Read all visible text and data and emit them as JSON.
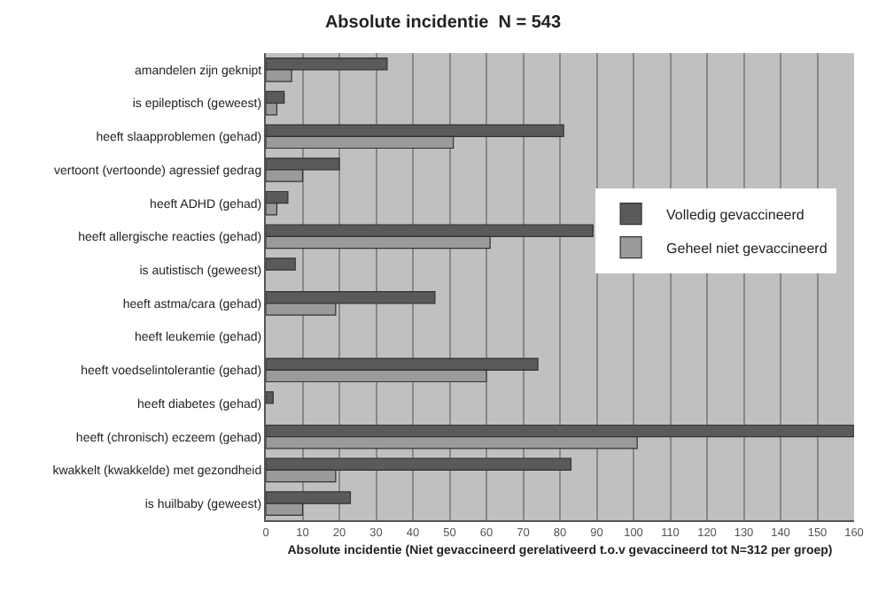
{
  "chart_data": {
    "type": "bar",
    "orientation": "horizontal",
    "title": "Absolute incidentie  N = 543",
    "xlabel": "Absolute incidentie (Niet gevaccineerd gerelativeerd t.o.v gevaccineerd tot N=312 per groep)",
    "categories": [
      "amandelen zijn geknipt",
      "is epileptisch (geweest)",
      "heeft slaapproblemen (gehad)",
      "vertoont (vertoonde) agressief gedrag",
      "heeft ADHD (gehad)",
      "heeft allergische reacties (gehad)",
      "is autistisch (geweest)",
      "heeft astma/cara (gehad)",
      "heeft leukemie (gehad)",
      "heeft voedselintolerantie (gehad)",
      "heeft diabetes (gehad)",
      "heeft (chronisch) eczeem (gehad)",
      "kwakkelt (kwakkelde) met gezondheid",
      "is huilbaby (geweest)"
    ],
    "series": [
      {
        "name": "Volledig gevaccineerd",
        "color": "#5a5a5a",
        "values": [
          33,
          5,
          81,
          20,
          6,
          89,
          8,
          46,
          0,
          74,
          2,
          160,
          83,
          23
        ]
      },
      {
        "name": "Geheel niet gevaccineerd",
        "color": "#9a9a9a",
        "values": [
          7,
          3,
          51,
          10,
          3,
          61,
          0,
          19,
          0,
          60,
          0,
          101,
          19,
          10
        ]
      }
    ],
    "xlim": [
      0,
      160
    ],
    "xticks": [
      0,
      10,
      20,
      30,
      40,
      50,
      60,
      70,
      80,
      90,
      100,
      110,
      120,
      130,
      140,
      150,
      160
    ],
    "grid": "x",
    "legend": "right"
  }
}
